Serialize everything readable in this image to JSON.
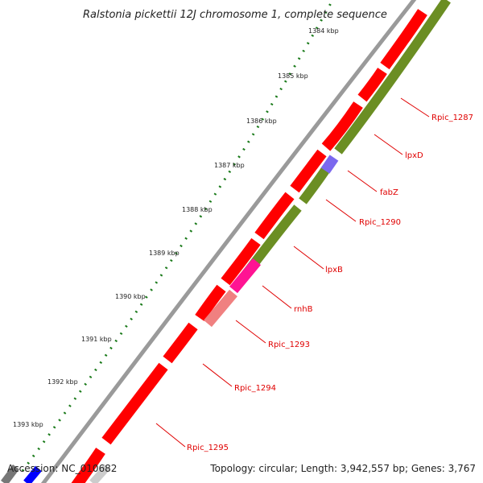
{
  "title": "Ralstonia pickettii 12J chromosome 1, complete sequence",
  "accession": "Accession: NC_010682",
  "topology": "Topology: circular; Length: 3,942,557 bp; Genes: 3,767",
  "kbp_ticks": [
    "1384 kbp",
    "1385 kbp",
    "1386 kbp",
    "1387 kbp",
    "1388 kbp",
    "1389 kbp",
    "1390 kbp",
    "1391 kbp",
    "1392 kbp",
    "1393 kbp"
  ],
  "gene_labels": [
    "Rpic_1287",
    "lpxD",
    "fabZ",
    "Rpic_1290",
    "lpxB",
    "rnhB",
    "Rpic_1293",
    "Rpic_1294",
    "Rpic_1295"
  ],
  "colors": {
    "background": "#ffffff",
    "backbone": "#9a9a9a",
    "cds_forward": "#ff0000",
    "cds_reverse": "#6b8e23",
    "fabZ": "#7b68ee",
    "rnhB": "#ff1493",
    "Rpic_1293": "#f08080",
    "label_line": "#e00000",
    "tick_dots": "#1a7a1a",
    "footer_text": "#222222"
  }
}
